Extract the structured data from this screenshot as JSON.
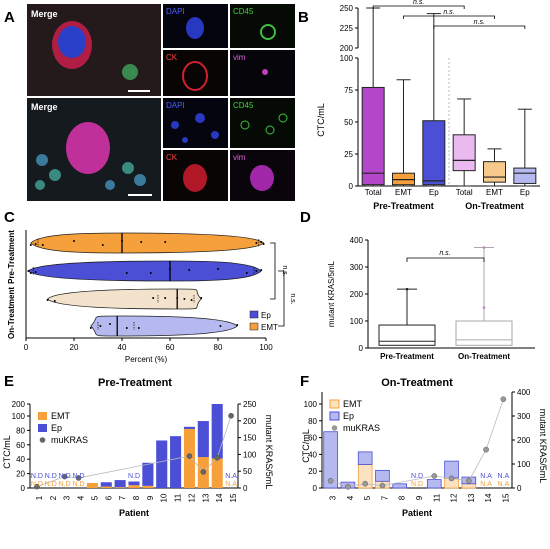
{
  "panels": {
    "A": {
      "letter": "A",
      "merge_top": "Merge",
      "merge_bottom": "Merge",
      "channels": [
        "DAPI",
        "CD45",
        "CK",
        "vim"
      ]
    },
    "B": {
      "letter": "B"
    },
    "C": {
      "letter": "C"
    },
    "D": {
      "letter": "D"
    },
    "E": {
      "letter": "E"
    },
    "F": {
      "letter": "F"
    }
  },
  "colors": {
    "total": "#b347c9",
    "total_light": "#e9b9f0",
    "emt": "#f5a03a",
    "emt_light": "#f7c98a",
    "ep": "#4a4fd6",
    "ep_light": "#b6b8f0",
    "mukras": "#666666",
    "beige": "#f3e2cc"
  },
  "chart_data": [
    {
      "id": "B",
      "type": "box",
      "ylabel": "CTC/mL",
      "categories": [
        "Total",
        "EMT",
        "Ep",
        "Total",
        "EMT",
        "Ep"
      ],
      "groups": [
        "Pre-Treatment",
        "On-Treatment"
      ],
      "yticks": [
        0,
        25,
        50,
        75,
        100,
        200,
        225,
        250
      ],
      "broken_axis": {
        "lower": [
          0,
          100
        ],
        "upper": [
          200,
          250
        ]
      },
      "boxes": [
        {
          "cat": "Total",
          "group": "Pre-Treatment",
          "min": 0,
          "q1": 1,
          "median": 10,
          "q3": 77,
          "max": 250
        },
        {
          "cat": "EMT",
          "group": "Pre-Treatment",
          "min": 0,
          "q1": 1,
          "median": 5,
          "q3": 10,
          "max": 83
        },
        {
          "cat": "Ep",
          "group": "Pre-Treatment",
          "min": 0,
          "q1": 1,
          "median": 4,
          "q3": 51,
          "max": 243
        },
        {
          "cat": "Total",
          "group": "On-Treatment",
          "min": 0,
          "q1": 12,
          "median": 20,
          "q3": 40,
          "max": 68
        },
        {
          "cat": "EMT",
          "group": "On-Treatment",
          "min": 0,
          "q1": 3,
          "median": 7,
          "q3": 19,
          "max": 29
        },
        {
          "cat": "Ep",
          "group": "On-Treatment",
          "min": 0,
          "q1": 2,
          "median": 10,
          "q3": 14,
          "max": 60
        }
      ],
      "annotations": [
        "n.s.",
        "n.s.",
        "n.s."
      ]
    },
    {
      "id": "C",
      "type": "violin",
      "xlabel": "Percent (%)",
      "xticks": [
        0,
        20,
        40,
        60,
        80,
        100
      ],
      "groups": [
        "Pre-Treatment",
        "On-Treatment"
      ],
      "legend": [
        "Ep",
        "EMT"
      ],
      "annotations": [
        "n.s.",
        "n.s."
      ],
      "rows": [
        {
          "group": "Pre-Treatment",
          "series": "EMT",
          "median": 40,
          "q1": 5,
          "q3": 97,
          "points": [
            2,
            4,
            7,
            20,
            32,
            40,
            48,
            58,
            96,
            98,
            99
          ]
        },
        {
          "group": "Pre-Treatment",
          "series": "Ep",
          "median": 60,
          "q1": 3,
          "q3": 95,
          "points": [
            1,
            2,
            4,
            42,
            52,
            60,
            68,
            80,
            92,
            96,
            98
          ]
        },
        {
          "group": "On-Treatment",
          "series": "EMT",
          "median": 63,
          "q1": 55,
          "q3": 70,
          "points": [
            9,
            12,
            53,
            58,
            63,
            66,
            69,
            73
          ]
        },
        {
          "group": "On-Treatment",
          "series": "Ep",
          "median": 38,
          "q1": 30,
          "q3": 45,
          "points": [
            27,
            31,
            35,
            42,
            47,
            81,
            88
          ]
        }
      ]
    },
    {
      "id": "D",
      "type": "box",
      "ylabel": "mutant KRAS/5mL",
      "yticks": [
        0,
        100,
        200,
        300,
        400
      ],
      "categories": [
        "Pre-Treatment",
        "On-Treatment"
      ],
      "annotations": [
        "n.s."
      ],
      "boxes": [
        {
          "cat": "Pre-Treatment",
          "min": 0,
          "q1": 10,
          "median": 25,
          "q3": 85,
          "max": 218
        },
        {
          "cat": "On-Treatment",
          "min": 0,
          "q1": 10,
          "median": 30,
          "q3": 100,
          "max": 372
        }
      ]
    },
    {
      "id": "E",
      "type": "bar",
      "title": "Pre-Treatment",
      "xlabel": "Patient",
      "ylabel": "CTC/mL",
      "y2label": "mutant KRAS/5mL",
      "categories": [
        "1",
        "2",
        "3",
        "4",
        "5",
        "6",
        "7",
        "8",
        "9",
        "10",
        "11",
        "12",
        "13",
        "14",
        "15"
      ],
      "yticks": [
        0,
        20,
        40,
        60,
        80,
        100,
        200
      ],
      "y2ticks": [
        0,
        50,
        100,
        150,
        200,
        250
      ],
      "legend": [
        "EMT",
        "Ep",
        "muKRAS"
      ],
      "series": [
        {
          "name": "EMT",
          "values": [
            0,
            0,
            0,
            0,
            7,
            2,
            1,
            4,
            3,
            0,
            0,
            82,
            43,
            41,
            0
          ]
        },
        {
          "name": "Ep",
          "values": [
            0,
            0,
            0,
            0,
            0,
            6,
            10,
            5,
            32,
            66,
            72,
            3,
            50,
            140,
            0
          ]
        },
        {
          "name": "muKRAS",
          "values": [
            4,
            null,
            34,
            30,
            null,
            null,
            null,
            null,
            null,
            null,
            null,
            95,
            48,
            90,
            215
          ]
        }
      ],
      "labels": [
        {
          "cat": "1",
          "top": "N.D",
          "bottom": "N.D"
        },
        {
          "cat": "2",
          "top": "N.D",
          "bottom": "N.D"
        },
        {
          "cat": "3",
          "top": "N.D",
          "bottom": "N.D"
        },
        {
          "cat": "4",
          "top": "N.D",
          "bottom": "N.D"
        },
        {
          "cat": "8",
          "top": "N.D",
          "bottom": ""
        },
        {
          "cat": "15",
          "top": "N.A",
          "bottom": "N.A"
        }
      ]
    },
    {
      "id": "F",
      "type": "bar",
      "title": "On-Treatment",
      "xlabel": "Patient",
      "ylabel": "CTC/mL",
      "y2label": "mutant KRAS/5mL",
      "categories": [
        "3",
        "4",
        "5",
        "7",
        "8",
        "9",
        "11",
        "12",
        "13",
        "14",
        "15"
      ],
      "yticks": [
        0,
        20,
        40,
        60,
        80,
        100
      ],
      "y2ticks": [
        0,
        100,
        200,
        300,
        400
      ],
      "legend": [
        "EMT",
        "Ep",
        "muKRAS"
      ],
      "series": [
        {
          "name": "EMT",
          "values": [
            0,
            0,
            28,
            8,
            0,
            0,
            0,
            12,
            5,
            0,
            0
          ]
        },
        {
          "name": "Ep",
          "values": [
            67,
            7,
            15,
            13,
            5,
            0,
            10,
            20,
            8,
            0,
            0
          ]
        },
        {
          "name": "muKRAS",
          "values": [
            30,
            5,
            18,
            10,
            null,
            null,
            50,
            40,
            30,
            160,
            370
          ]
        }
      ],
      "labels": [
        {
          "cat": "9",
          "top": "N.D",
          "bottom": "N.D"
        },
        {
          "cat": "14",
          "top": "N.A",
          "bottom": "N.A"
        },
        {
          "cat": "15",
          "top": "N.A",
          "bottom": "N.A"
        }
      ]
    }
  ]
}
